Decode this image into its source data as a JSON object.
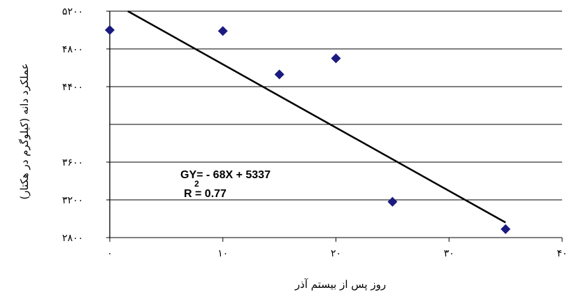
{
  "chart_data": {
    "type": "scatter",
    "title": "",
    "xlabel": "روز پس از بیستم آذر",
    "ylabel": "عملکرد دانه (کیلوگرم در هکتار)",
    "xlim": [
      0,
      40
    ],
    "ylim": [
      2800,
      5200
    ],
    "x_ticks": [
      0,
      10,
      20,
      30,
      40
    ],
    "x_tick_labels": [
      "۰",
      "۱۰",
      "۲۰",
      "۳۰",
      "۴۰"
    ],
    "y_ticks": [
      2800,
      3200,
      3600,
      4400,
      4800,
      5200
    ],
    "y_tick_labels": [
      "۲۸۰۰",
      "۳۲۰۰",
      "۳۶۰۰",
      "۴۴۰۰",
      "۴۸۰۰",
      "۵۲۰۰"
    ],
    "gridlines": [
      2800,
      3200,
      3600,
      4000,
      4400,
      4800,
      5200
    ],
    "grid": true,
    "marker": "diamond",
    "marker_color": "#1a1a80",
    "series": [
      {
        "x": [
          0,
          10,
          15,
          20,
          25,
          35
        ],
        "y": [
          5000,
          4990,
          4530,
          4700,
          3180,
          2890
        ]
      }
    ],
    "trendline": {
      "x_start": 1.6,
      "y_start": 5200,
      "x_end": 35,
      "y_end": 2960,
      "color": "#000000"
    },
    "equation": {
      "line1": "GY= - 68X + 5337",
      "sup": "2",
      "line2": "R = 0.77"
    }
  }
}
